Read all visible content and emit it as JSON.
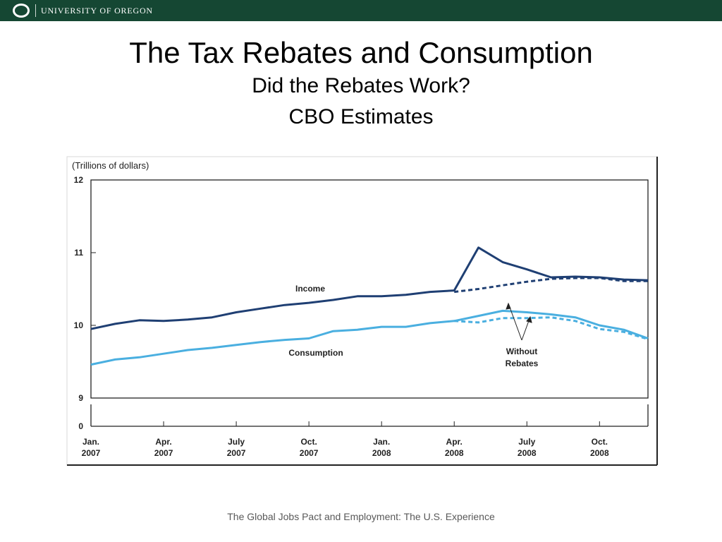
{
  "header": {
    "university": "UNIVERSITY OF OREGON",
    "logo_letter": "O",
    "bar_color": "#154733"
  },
  "slide": {
    "title": "The Tax Rebates and Consumption",
    "subtitle1": "Did the Rebates Work?",
    "subtitle2": "CBO Estimates",
    "footer": "The Global Jobs Pact and Employment: The U.S. Experience"
  },
  "chart_data": {
    "type": "line",
    "unit_label": "(Trillions of dollars)",
    "y_ticks": [
      12,
      11,
      10,
      9
    ],
    "y_zero_label": "0",
    "ylim": [
      9,
      12
    ],
    "broken_axis": true,
    "xlim": [
      0,
      23
    ],
    "x_ticks": [
      {
        "x": 0,
        "month": "Jan.",
        "year": "2007"
      },
      {
        "x": 3,
        "month": "Apr.",
        "year": "2007"
      },
      {
        "x": 6,
        "month": "July",
        "year": "2007"
      },
      {
        "x": 9,
        "month": "Oct.",
        "year": "2007"
      },
      {
        "x": 12,
        "month": "Jan.",
        "year": "2008"
      },
      {
        "x": 15,
        "month": "Apr.",
        "year": "2008"
      },
      {
        "x": 18,
        "month": "July",
        "year": "2008"
      },
      {
        "x": 21,
        "month": "Oct.",
        "year": "2008"
      }
    ],
    "series": [
      {
        "name": "Income",
        "style": "solid",
        "color": "#1f3f73",
        "x": [
          0,
          1,
          2,
          3,
          4,
          5,
          6,
          7,
          8,
          9,
          10,
          11,
          12,
          13,
          14,
          15,
          16,
          17,
          18,
          19,
          20,
          21,
          22,
          23
        ],
        "y": [
          9.95,
          10.02,
          10.07,
          10.06,
          10.08,
          10.11,
          10.18,
          10.23,
          10.28,
          10.31,
          10.35,
          10.4,
          10.4,
          10.42,
          10.46,
          10.48,
          11.07,
          10.87,
          10.77,
          10.66,
          10.67,
          10.66,
          10.63,
          10.62
        ]
      },
      {
        "name": "Income without rebates",
        "style": "dashed",
        "color": "#1f3f73",
        "x": [
          15,
          16,
          17,
          18,
          19,
          20,
          21,
          22,
          23
        ],
        "y": [
          10.46,
          10.5,
          10.55,
          10.6,
          10.64,
          10.65,
          10.65,
          10.61,
          10.61
        ]
      },
      {
        "name": "Consumption",
        "style": "solid",
        "color": "#4aafe0",
        "x": [
          0,
          1,
          2,
          3,
          4,
          5,
          6,
          7,
          8,
          9,
          10,
          11,
          12,
          13,
          14,
          15,
          16,
          17,
          18,
          19,
          20,
          21,
          22,
          23
        ],
        "y": [
          9.46,
          9.53,
          9.56,
          9.61,
          9.66,
          9.69,
          9.73,
          9.77,
          9.8,
          9.82,
          9.92,
          9.94,
          9.98,
          9.98,
          10.03,
          10.06,
          10.13,
          10.2,
          10.18,
          10.15,
          10.11,
          10.0,
          9.94,
          9.82
        ]
      },
      {
        "name": "Consumption without rebates",
        "style": "dashed",
        "color": "#4aafe0",
        "x": [
          15,
          16,
          17,
          18,
          19,
          20,
          21,
          22,
          23
        ],
        "y": [
          10.06,
          10.04,
          10.1,
          10.1,
          10.11,
          10.06,
          9.95,
          9.91,
          9.81
        ]
      }
    ],
    "labels": {
      "income": "Income",
      "consumption": "Consumption",
      "without_line1": "Without",
      "without_line2": "Rebates"
    }
  }
}
